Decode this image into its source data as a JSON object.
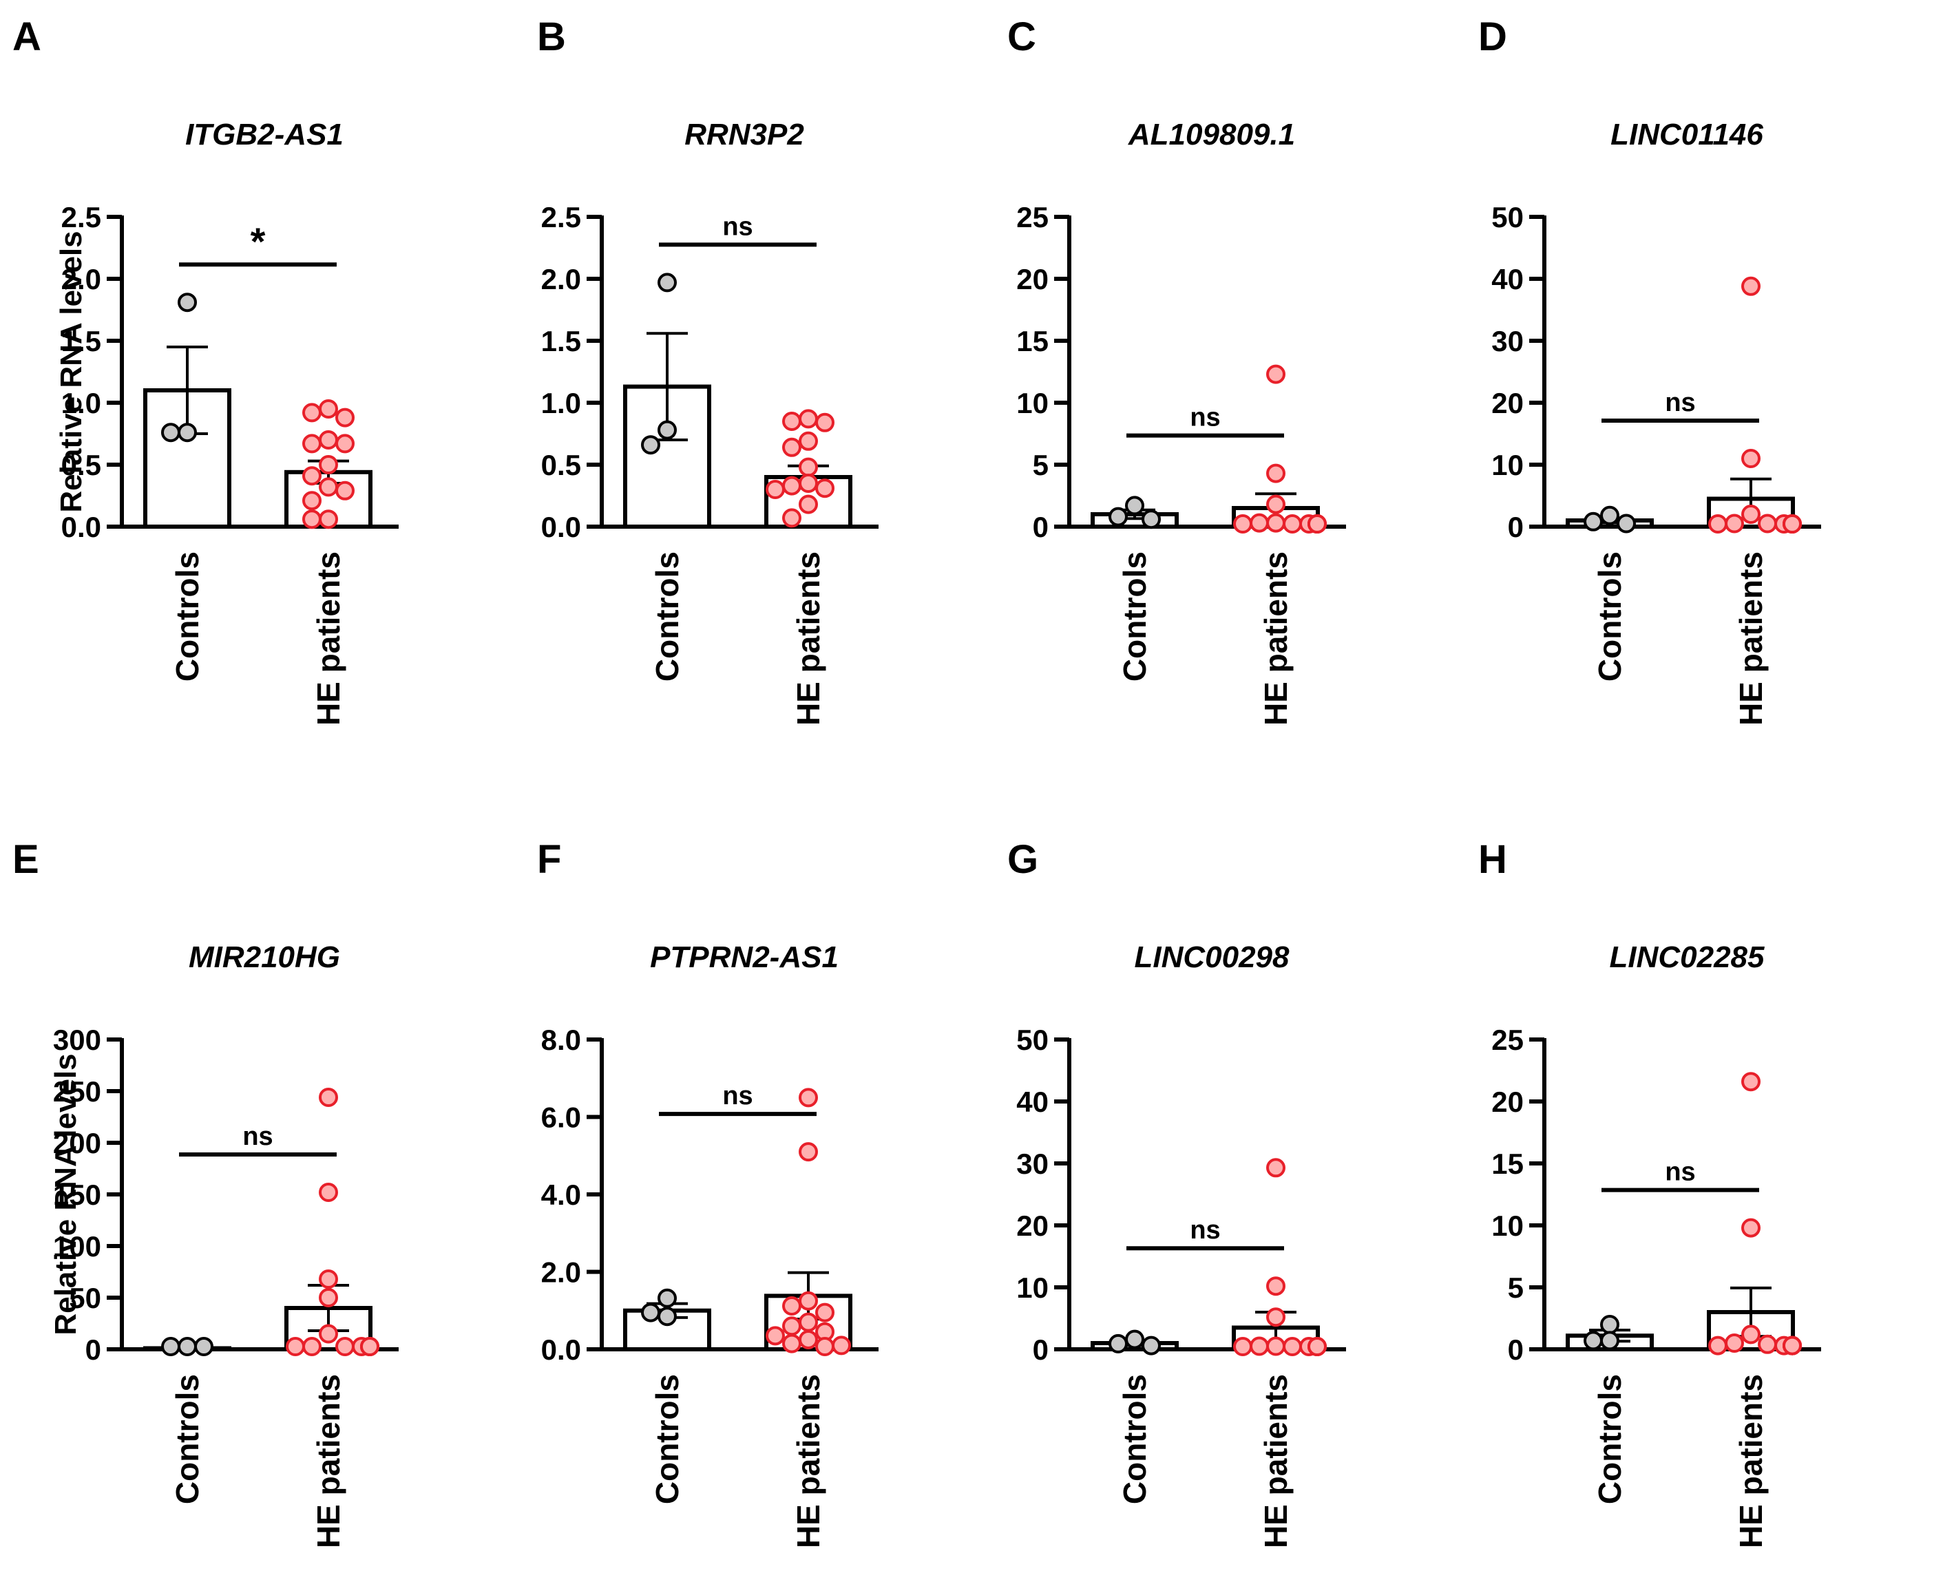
{
  "figure": {
    "colors": {
      "axis": "#000000",
      "bar_fill": "#ffffff",
      "controls_point_fill": "#c8c8c8",
      "controls_point_stroke": "#000000",
      "patients_point_fill": "#ffb0b0",
      "patients_point_stroke": "#e8202a"
    }
  },
  "chart_data": [
    {
      "panel": "A",
      "title": "ITGB2-AS1",
      "type": "bar",
      "ylabel": "Relative RNA levels",
      "categories": [
        "Controls",
        "HE patients"
      ],
      "ylim": [
        0,
        2.5
      ],
      "ticks": [
        "0.0",
        "0.5",
        "1.0",
        "1.5",
        "2.0",
        "2.5"
      ],
      "means": [
        1.1,
        0.44
      ],
      "sem": [
        0.35,
        0.09
      ],
      "points": [
        [
          1.81,
          0.76,
          0.76
        ],
        [
          0.95,
          0.92,
          0.88,
          0.7,
          0.67,
          0.67,
          0.5,
          0.41,
          0.32,
          0.29,
          0.21,
          0.06,
          0.06
        ]
      ],
      "significance": "*"
    },
    {
      "panel": "B",
      "title": "RRN3P2",
      "type": "bar",
      "ylabel": "",
      "categories": [
        "Controls",
        "HE patients"
      ],
      "ylim": [
        0,
        2.5
      ],
      "ticks": [
        "0.0",
        "0.5",
        "1.0",
        "1.5",
        "2.0",
        "2.5"
      ],
      "means": [
        1.13,
        0.4
      ],
      "sem": [
        0.43,
        0.09
      ],
      "points": [
        [
          1.97,
          0.78,
          0.66
        ],
        [
          0.87,
          0.85,
          0.84,
          0.69,
          0.64,
          0.48,
          0.35,
          0.33,
          0.31,
          0.3,
          0.18,
          0.07
        ]
      ],
      "significance": "ns"
    },
    {
      "panel": "C",
      "title": "AL109809.1",
      "type": "bar",
      "ylabel": "",
      "categories": [
        "Controls",
        "HE patients"
      ],
      "ylim": [
        0,
        25
      ],
      "ticks": [
        "0",
        "5",
        "10",
        "15",
        "20",
        "25"
      ],
      "means": [
        1.0,
        1.5
      ],
      "sem": [
        0.35,
        1.15
      ],
      "points": [
        [
          1.7,
          0.8,
          0.6
        ],
        [
          12.3,
          4.3,
          1.8,
          0.3,
          0.3,
          0.2,
          0.2,
          0.2,
          0.2,
          0.2,
          0.2,
          0.2
        ]
      ],
      "significance": "ns"
    },
    {
      "panel": "D",
      "title": "LINC01146",
      "type": "bar",
      "ylabel": "",
      "categories": [
        "Controls",
        "HE patients"
      ],
      "ylim": [
        0,
        50
      ],
      "ticks": [
        "0",
        "10",
        "20",
        "30",
        "40",
        "50"
      ],
      "means": [
        1.0,
        4.5
      ],
      "sem": [
        0.4,
        3.2
      ],
      "points": [
        [
          1.8,
          0.8,
          0.5
        ],
        [
          38.8,
          11.0,
          2.0,
          0.5,
          0.5,
          0.3,
          0.3,
          0.3,
          0.3,
          0.3,
          0.3,
          0.3
        ]
      ],
      "significance": "ns"
    },
    {
      "panel": "E",
      "title": "MIR210HG",
      "type": "bar",
      "ylabel": "Relative RNA levels",
      "categories": [
        "Controls",
        "HE patients"
      ],
      "ylim": [
        0,
        300
      ],
      "ticks": [
        "0",
        "50",
        "100",
        "150",
        "200",
        "250",
        "300"
      ],
      "means": [
        1.0,
        40.0
      ],
      "sem": [
        0.5,
        22.0
      ],
      "points": [
        [
          1.5,
          1.0,
          0.5
        ],
        [
          244,
          152,
          68,
          50,
          15,
          2,
          2,
          1,
          1,
          1,
          1,
          1,
          1
        ]
      ],
      "significance": "ns"
    },
    {
      "panel": "F",
      "title": "PTPRN2-AS1",
      "type": "bar",
      "ylabel": "",
      "categories": [
        "Controls",
        "HE patients"
      ],
      "ylim": [
        0,
        8
      ],
      "ticks": [
        "0.0",
        "2.0",
        "4.0",
        "6.0",
        "8.0"
      ],
      "means": [
        1.0,
        1.38
      ],
      "sem": [
        0.18,
        0.6
      ],
      "points": [
        [
          1.32,
          0.95,
          0.85
        ],
        [
          6.5,
          5.1,
          1.25,
          1.12,
          0.95,
          0.7,
          0.6,
          0.45,
          0.35,
          0.25,
          0.15,
          0.1,
          0.05
        ]
      ],
      "significance": "ns"
    },
    {
      "panel": "G",
      "title": "LINC00298",
      "type": "bar",
      "ylabel": "",
      "categories": [
        "Controls",
        "HE patients"
      ],
      "ylim": [
        0,
        50
      ],
      "ticks": [
        "0",
        "10",
        "20",
        "30",
        "40",
        "50"
      ],
      "means": [
        1.0,
        3.5
      ],
      "sem": [
        0.4,
        2.5
      ],
      "points": [
        [
          1.6,
          0.9,
          0.6
        ],
        [
          29.3,
          10.2,
          5.2,
          0.5,
          0.5,
          0.3,
          0.3,
          0.3,
          0.3,
          0.3,
          0.3,
          0.3
        ]
      ],
      "significance": "ns"
    },
    {
      "panel": "H",
      "title": "LINC02285",
      "type": "bar",
      "ylabel": "",
      "categories": [
        "Controls",
        "HE patients"
      ],
      "ylim": [
        0,
        25
      ],
      "ticks": [
        "0",
        "5",
        "10",
        "15",
        "20",
        "25"
      ],
      "means": [
        1.1,
        3.0
      ],
      "sem": [
        0.45,
        1.95
      ],
      "points": [
        [
          2.0,
          0.7,
          0.7
        ],
        [
          21.6,
          9.8,
          1.2,
          0.5,
          0.4,
          0.3,
          0.3,
          0.3,
          0.3,
          0.3,
          0.3,
          0.3
        ]
      ],
      "significance": "ns"
    }
  ]
}
